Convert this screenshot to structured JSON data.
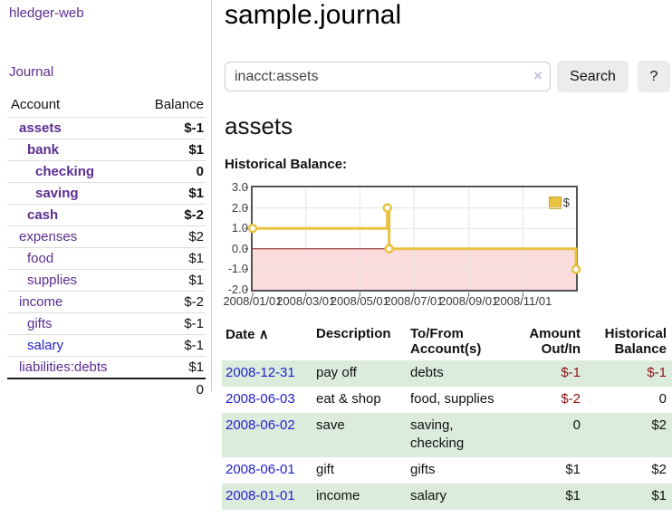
{
  "app": {
    "brand": "hledger-web",
    "nav_journal": "Journal"
  },
  "sidebar": {
    "header": {
      "account": "Account",
      "balance": "Balance"
    },
    "accounts": [
      {
        "name": "assets",
        "level": 1,
        "balance": "$-1",
        "bold": true,
        "neg": "strong"
      },
      {
        "name": "bank",
        "level": 2,
        "balance": "$1",
        "bold": true,
        "neg": "none"
      },
      {
        "name": "checking",
        "level": 3,
        "balance": "0",
        "bold": true,
        "neg": "none"
      },
      {
        "name": "saving",
        "level": 3,
        "balance": "$1",
        "bold": true,
        "neg": "none"
      },
      {
        "name": "cash",
        "level": 2,
        "balance": "$-2",
        "bold": true,
        "neg": "strong"
      },
      {
        "name": "expenses",
        "level": 1,
        "balance": "$2",
        "bold": false,
        "neg": "none"
      },
      {
        "name": "food",
        "level": 2,
        "balance": "$1",
        "bold": false,
        "neg": "none"
      },
      {
        "name": "supplies",
        "level": 2,
        "balance": "$1",
        "bold": false,
        "neg": "none"
      },
      {
        "name": "income",
        "level": 1,
        "balance": "$-2",
        "bold": false,
        "neg": "muted"
      },
      {
        "name": "gifts",
        "level": 2,
        "balance": "$-1",
        "bold": false,
        "neg": "muted"
      },
      {
        "name": "salary",
        "level": 2,
        "balance": "$-1",
        "bold": false,
        "neg": "muted",
        "unvisited": true
      },
      {
        "name": "liabilities:debts",
        "level": 1,
        "balance": "$1",
        "bold": false,
        "neg": "none"
      }
    ],
    "total": "0"
  },
  "header": {
    "title": "sample.journal"
  },
  "search": {
    "value": "inacct:assets",
    "clear_icon": "×",
    "button_label": "Search",
    "help_label": "?"
  },
  "account_page": {
    "heading": "assets",
    "chart_label": "Historical Balance:"
  },
  "chart_data": {
    "type": "line",
    "style": "step",
    "title": "Historical Balance:",
    "series": [
      {
        "name": "$",
        "color": "#e8c240",
        "points": [
          [
            "2008-01-01",
            1
          ],
          [
            "2008-06-01",
            2
          ],
          [
            "2008-06-03",
            0
          ],
          [
            "2008-12-31",
            -1
          ]
        ]
      }
    ],
    "x_start": "2008-01-01",
    "x_days": 365,
    "x_ticks": [
      "2008/01/01",
      "2008/03/01",
      "2008/05/01",
      "2008/07/01",
      "2008/09/01",
      "2008/11/01"
    ],
    "x_tick_days": [
      0,
      60,
      121,
      182,
      244,
      305
    ],
    "y_ticks": [
      3.0,
      2.0,
      1.0,
      0.0,
      -1.0,
      -2.0
    ],
    "ylim": [
      -2,
      3
    ],
    "grid": true,
    "legend_position": "top-right",
    "negative_region_fill": "#fbdcdc",
    "zero_line_color": "#871010"
  },
  "register": {
    "headers": {
      "date": "Date",
      "description": "Description",
      "accounts": "To/From Account(s)",
      "amount": "Amount Out/In",
      "balance": "Historical Balance"
    },
    "sort_icon": "∧",
    "rows": [
      {
        "date": "2008-12-31",
        "description": "pay off",
        "accounts": "debts",
        "amount": "$-1",
        "amount_neg": true,
        "balance": "$-1",
        "balance_neg": true
      },
      {
        "date": "2008-06-03",
        "description": "eat & shop",
        "accounts": "food, supplies",
        "amount": "$-2",
        "amount_neg": true,
        "balance": "0",
        "balance_neg": false
      },
      {
        "date": "2008-06-02",
        "description": "save",
        "accounts": "saving, checking",
        "amount": "0",
        "amount_neg": false,
        "balance": "$2",
        "balance_neg": false
      },
      {
        "date": "2008-06-01",
        "description": "gift",
        "accounts": "gifts",
        "amount": "$1",
        "amount_neg": false,
        "balance": "$2",
        "balance_neg": false
      },
      {
        "date": "2008-01-01",
        "description": "income",
        "accounts": "salary",
        "amount": "$1",
        "amount_neg": false,
        "balance": "$1",
        "balance_neg": false
      }
    ]
  },
  "colors": {
    "link_purple": "#5b2d90",
    "link_blue": "#2222cc",
    "negative_strong": "#8b1414",
    "negative_muted": "#c08080",
    "row_stripe_green": "#dcecdc",
    "series_gold": "#e8c240",
    "chart_border": "#545454",
    "negative_region": "#fbdcdc"
  }
}
